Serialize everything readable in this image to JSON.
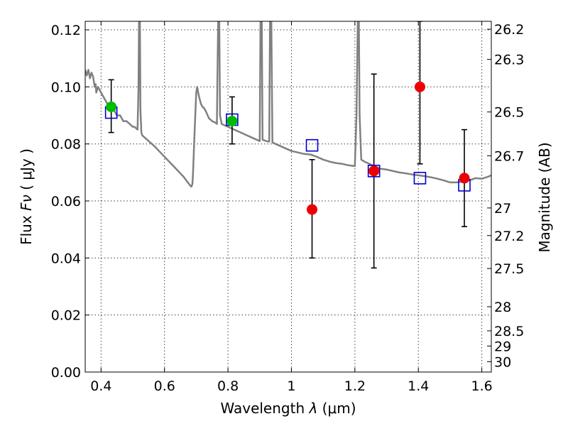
{
  "chart_data": {
    "type": "scatter",
    "x_axis": {
      "label_main": "Wavelength ",
      "label_symbol": "λ",
      "label_unit": " (μm)",
      "range": [
        0.35,
        1.63
      ],
      "ticks": [
        0.4,
        0.6,
        0.8,
        1.0,
        1.2,
        1.4,
        1.6
      ],
      "tick_labels": [
        "0.4",
        "0.6",
        "0.8",
        "1",
        "1.2",
        "1.4",
        "1.6"
      ]
    },
    "y_axis": {
      "label_main": "Flux ",
      "label_symbol": "Fν",
      "label_unit": " ( μJy )",
      "range": [
        0.0,
        0.123
      ],
      "ticks": [
        0.0,
        0.02,
        0.04,
        0.06,
        0.08,
        0.1,
        0.12
      ],
      "tick_labels": [
        "0.00",
        "0.02",
        "0.04",
        "0.06",
        "0.08",
        "0.10",
        "0.12"
      ]
    },
    "y2_axis": {
      "label": "Magnitude (AB)",
      "ticks": [
        26.2,
        26.3,
        26.5,
        26.7,
        27,
        27.2,
        27.5,
        28,
        28.5,
        29,
        30
      ],
      "tick_labels": [
        "26.2",
        "26.3",
        "26.5",
        "26.7",
        "27",
        "27.2",
        "27.5",
        "28",
        "28.5",
        "29",
        "30"
      ]
    },
    "grid": true,
    "series": [
      {
        "kind": "spectrum_line",
        "color": "#808080",
        "points": [
          [
            0.35,
            0.106
          ],
          [
            0.355,
            0.104
          ],
          [
            0.36,
            0.106
          ],
          [
            0.365,
            0.103
          ],
          [
            0.37,
            0.105
          ],
          [
            0.375,
            0.1035
          ],
          [
            0.38,
            0.1
          ],
          [
            0.383,
            0.101
          ],
          [
            0.385,
            0.098
          ],
          [
            0.39,
            0.1
          ],
          [
            0.395,
            0.099
          ],
          [
            0.4,
            0.098
          ],
          [
            0.41,
            0.096
          ],
          [
            0.42,
            0.094
          ],
          [
            0.43,
            0.094
          ],
          [
            0.44,
            0.092
          ],
          [
            0.45,
            0.09
          ],
          [
            0.46,
            0.09
          ],
          [
            0.47,
            0.088
          ],
          [
            0.48,
            0.088
          ],
          [
            0.49,
            0.087
          ],
          [
            0.5,
            0.086
          ],
          [
            0.505,
            0.086
          ],
          [
            0.51,
            0.0855
          ],
          [
            0.515,
            0.085
          ],
          [
            0.518,
            0.1
          ],
          [
            0.52,
            0.13
          ],
          [
            0.522,
            0.13
          ],
          [
            0.524,
            0.092
          ],
          [
            0.527,
            0.084
          ],
          [
            0.53,
            0.083
          ],
          [
            0.55,
            0.081
          ],
          [
            0.57,
            0.079
          ],
          [
            0.6,
            0.0755
          ],
          [
            0.63,
            0.072
          ],
          [
            0.66,
            0.0685
          ],
          [
            0.68,
            0.0655
          ],
          [
            0.685,
            0.065
          ],
          [
            0.688,
            0.066
          ],
          [
            0.69,
            0.07
          ],
          [
            0.695,
            0.085
          ],
          [
            0.7,
            0.098
          ],
          [
            0.703,
            0.1
          ],
          [
            0.706,
            0.098
          ],
          [
            0.71,
            0.096
          ],
          [
            0.715,
            0.094
          ],
          [
            0.72,
            0.093
          ],
          [
            0.725,
            0.0925
          ],
          [
            0.73,
            0.0915
          ],
          [
            0.74,
            0.089
          ],
          [
            0.75,
            0.088
          ],
          [
            0.76,
            0.0875
          ],
          [
            0.765,
            0.087
          ],
          [
            0.767,
            0.105
          ],
          [
            0.77,
            0.13
          ],
          [
            0.772,
            0.13
          ],
          [
            0.775,
            0.09
          ],
          [
            0.78,
            0.087
          ],
          [
            0.79,
            0.0865
          ],
          [
            0.8,
            0.086
          ],
          [
            0.81,
            0.0855
          ],
          [
            0.82,
            0.085
          ],
          [
            0.83,
            0.0845
          ],
          [
            0.84,
            0.084
          ],
          [
            0.85,
            0.0835
          ],
          [
            0.86,
            0.083
          ],
          [
            0.87,
            0.0825
          ],
          [
            0.88,
            0.082
          ],
          [
            0.89,
            0.0815
          ],
          [
            0.9,
            0.081
          ],
          [
            0.903,
            0.13
          ],
          [
            0.906,
            0.13
          ],
          [
            0.909,
            0.0815
          ],
          [
            0.92,
            0.081
          ],
          [
            0.93,
            0.0808
          ],
          [
            0.933,
            0.13
          ],
          [
            0.936,
            0.13
          ],
          [
            0.94,
            0.0805
          ],
          [
            0.95,
            0.08
          ],
          [
            0.96,
            0.0795
          ],
          [
            0.97,
            0.079
          ],
          [
            0.98,
            0.0785
          ],
          [
            0.99,
            0.078
          ],
          [
            1.0,
            0.0775
          ],
          [
            1.02,
            0.077
          ],
          [
            1.04,
            0.0765
          ],
          [
            1.06,
            0.0763
          ],
          [
            1.08,
            0.0755
          ],
          [
            1.1,
            0.0745
          ],
          [
            1.12,
            0.0738
          ],
          [
            1.14,
            0.0733
          ],
          [
            1.16,
            0.073
          ],
          [
            1.18,
            0.0725
          ],
          [
            1.2,
            0.0722
          ],
          [
            1.205,
            0.09
          ],
          [
            1.21,
            0.13
          ],
          [
            1.212,
            0.13
          ],
          [
            1.215,
            0.09
          ],
          [
            1.22,
            0.0745
          ],
          [
            1.23,
            0.0738
          ],
          [
            1.24,
            0.0733
          ],
          [
            1.25,
            0.0728
          ],
          [
            1.26,
            0.0722
          ],
          [
            1.27,
            0.0718
          ],
          [
            1.28,
            0.0713
          ],
          [
            1.3,
            0.071
          ],
          [
            1.32,
            0.0705
          ],
          [
            1.34,
            0.07
          ],
          [
            1.36,
            0.0697
          ],
          [
            1.38,
            0.0693
          ],
          [
            1.4,
            0.069
          ],
          [
            1.42,
            0.0687
          ],
          [
            1.44,
            0.0683
          ],
          [
            1.46,
            0.0678
          ],
          [
            1.48,
            0.0672
          ],
          [
            1.5,
            0.0665
          ],
          [
            1.52,
            0.0665
          ],
          [
            1.54,
            0.0668
          ],
          [
            1.56,
            0.0672
          ],
          [
            1.58,
            0.068
          ],
          [
            1.6,
            0.0678
          ],
          [
            1.62,
            0.0685
          ],
          [
            1.63,
            0.069
          ]
        ]
      },
      {
        "kind": "model_squares",
        "color": "#0000cc",
        "points": [
          [
            0.432,
            0.091
          ],
          [
            0.813,
            0.0885
          ],
          [
            1.065,
            0.0795
          ],
          [
            1.26,
            0.0705
          ],
          [
            1.405,
            0.068
          ],
          [
            1.545,
            0.0655
          ]
        ]
      },
      {
        "kind": "observed_green",
        "color": "#00bb00",
        "points": [
          {
            "x": 0.432,
            "y": 0.093,
            "err_lo": 0.084,
            "err_hi": 0.1025
          },
          {
            "x": 0.813,
            "y": 0.088,
            "err_lo": 0.08,
            "err_hi": 0.0965
          }
        ]
      },
      {
        "kind": "observed_red",
        "color": "#ee0000",
        "points": [
          {
            "x": 1.065,
            "y": 0.057,
            "err_lo": 0.04,
            "err_hi": 0.0745
          },
          {
            "x": 1.26,
            "y": 0.0705,
            "err_lo": 0.0365,
            "err_hi": 0.1045
          },
          {
            "x": 1.405,
            "y": 0.1,
            "err_lo": 0.073,
            "err_hi": 0.123
          },
          {
            "x": 1.545,
            "y": 0.068,
            "err_lo": 0.051,
            "err_hi": 0.085
          }
        ]
      }
    ]
  }
}
